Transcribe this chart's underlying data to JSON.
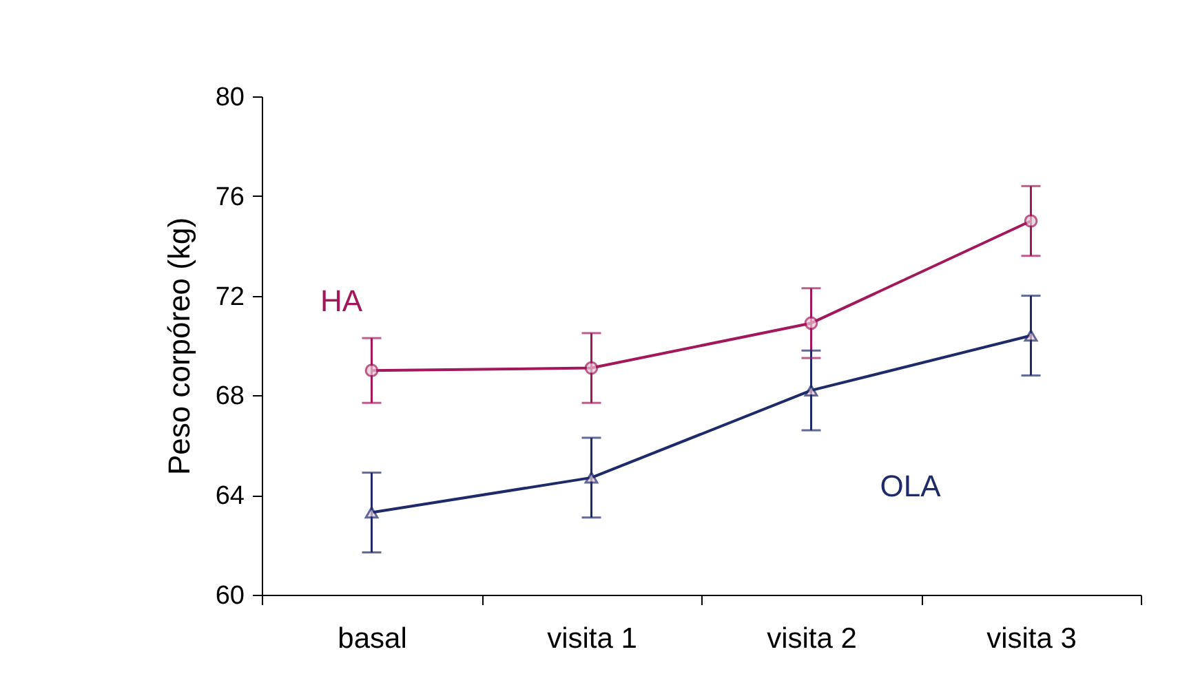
{
  "chart_data": {
    "type": "line",
    "ylabel": "Peso corpóreo (kg)",
    "categories": [
      "basal",
      "visita 1",
      "visita 2",
      "visita 3"
    ],
    "ylim": [
      60,
      80
    ],
    "yticks": [
      60,
      64,
      68,
      72,
      76,
      80
    ],
    "grid": false,
    "legend": false,
    "series": [
      {
        "name": "HA",
        "color": "#a3175b",
        "marker": "circle",
        "values": [
          69.0,
          69.1,
          70.9,
          75.0
        ],
        "errors": [
          1.3,
          1.4,
          1.4,
          1.4
        ]
      },
      {
        "name": "OLA",
        "color": "#1f2a6b",
        "marker": "triangle",
        "values": [
          63.3,
          64.7,
          68.2,
          70.4
        ],
        "errors": [
          1.6,
          1.6,
          1.6,
          1.6
        ]
      }
    ]
  }
}
